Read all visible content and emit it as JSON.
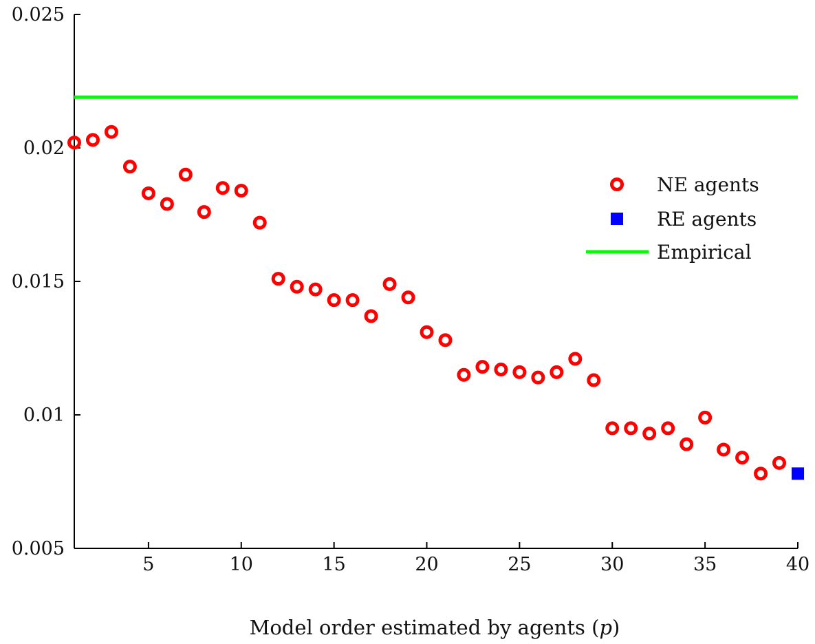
{
  "chart_data": {
    "type": "scatter",
    "title": "",
    "xlabel": "Model order estimated by agents (p)",
    "xlabel_main": "Model order estimated by agents (",
    "xlabel_var": "p",
    "xlabel_close": ")",
    "ylabel": "",
    "xlim": [
      1,
      40
    ],
    "ylim": [
      0.005,
      0.025
    ],
    "xticks": [
      5,
      10,
      15,
      20,
      25,
      30,
      35,
      40
    ],
    "xtick_labels": [
      "5",
      "10",
      "15",
      "20",
      "25",
      "30",
      "35",
      "40"
    ],
    "yticks": [
      0.005,
      0.01,
      0.015,
      0.02,
      0.025
    ],
    "ytick_labels": [
      "0.005",
      "0.01",
      "0.015",
      "0.02",
      "0.025"
    ],
    "grid": false,
    "legend_position": "right",
    "series": [
      {
        "name": "NE agents",
        "marker": "open-circle",
        "color": "#ff0000",
        "x": [
          1,
          2,
          3,
          4,
          5,
          6,
          7,
          8,
          9,
          10,
          11,
          12,
          13,
          14,
          15,
          16,
          17,
          18,
          19,
          20,
          21,
          22,
          23,
          24,
          25,
          26,
          27,
          28,
          29,
          30,
          31,
          32,
          33,
          34,
          35,
          36,
          37,
          38,
          39
        ],
        "y": [
          0.0202,
          0.0203,
          0.0206,
          0.0193,
          0.0183,
          0.0179,
          0.019,
          0.0176,
          0.0185,
          0.0184,
          0.0172,
          0.0151,
          0.0148,
          0.0147,
          0.0143,
          0.0143,
          0.0137,
          0.0149,
          0.0144,
          0.0131,
          0.0128,
          0.0115,
          0.0118,
          0.0117,
          0.0116,
          0.0114,
          0.0116,
          0.0121,
          0.0113,
          0.0095,
          0.0095,
          0.0093,
          0.0095,
          0.0089,
          0.0099,
          0.0087,
          0.0084,
          0.0078,
          0.0082
        ]
      },
      {
        "name": "RE agents",
        "marker": "filled-square",
        "color": "#0000ff",
        "x": [
          40
        ],
        "y": [
          0.0078
        ]
      },
      {
        "name": "Empirical",
        "marker": "line",
        "color": "#00ff00",
        "x": [
          1,
          40
        ],
        "y": [
          0.0219,
          0.0219
        ]
      }
    ]
  }
}
